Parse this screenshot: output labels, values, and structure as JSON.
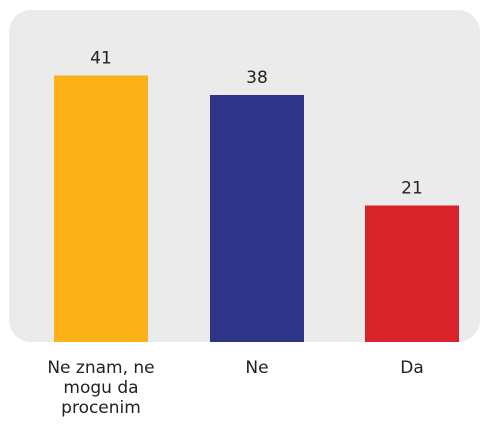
{
  "chart_data": {
    "type": "bar",
    "categories": [
      "Ne znam, ne mogu da procenim",
      "Ne",
      "Da"
    ],
    "category_lines": [
      [
        "Ne znam, ne",
        "mogu da",
        "procenim"
      ],
      [
        "Ne"
      ],
      [
        "Da"
      ]
    ],
    "values": [
      41,
      38,
      21
    ],
    "colors": [
      "#FBB117",
      "#2E3589",
      "#D9232A"
    ],
    "data_labels": [
      "41",
      "38",
      "21"
    ],
    "title": "",
    "xlabel": "",
    "ylabel": "",
    "ylim": [
      0,
      45
    ],
    "grid": false,
    "legend": "none"
  }
}
